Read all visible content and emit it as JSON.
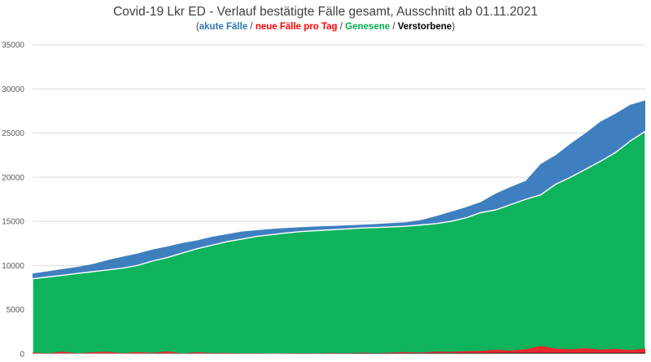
{
  "chart_data": {
    "type": "area",
    "title": "Covid-19 Lkr ED - Verlauf bestätigte Fälle gesamt, Ausschnitt ab 01.11.2021",
    "legend": {
      "open": "(",
      "close": ")",
      "separator": " / ",
      "items": [
        {
          "label": "akute Fälle",
          "color": "#2e75b6"
        },
        {
          "label": "neue Fälle pro Tag",
          "color": "#ff0000"
        },
        {
          "label": "Genesene",
          "color": "#00b050"
        },
        {
          "label": "Verstorbene",
          "color": "#000000"
        }
      ]
    },
    "ylim": [
      0,
      35000
    ],
    "yticks": [
      0,
      5000,
      10000,
      15000,
      20000,
      25000,
      30000,
      35000
    ],
    "ytick_labels": [
      "0",
      "5000",
      "10000",
      "15000",
      "20000",
      "25000",
      "30000",
      "35000"
    ],
    "grid": true,
    "xlabel": "",
    "ylabel": "",
    "x_start": "01.11.2021",
    "series": [
      {
        "name": "Gesamt (akute Fälle)",
        "color": "#3f7fbf",
        "values": [
          9100,
          9350,
          9600,
          9850,
          10150,
          10600,
          11000,
          11350,
          11800,
          12150,
          12550,
          12850,
          13250,
          13550,
          13850,
          14000,
          14150,
          14250,
          14350,
          14420,
          14480,
          14550,
          14620,
          14700,
          14800,
          14900,
          15150,
          15600,
          16100,
          16600,
          17200,
          18150,
          18900,
          19600,
          21500,
          22500,
          23800,
          25000,
          26300,
          27200,
          28200,
          28700
        ]
      },
      {
        "name": "Genesene",
        "color": "#0fb35c",
        "values": [
          8500,
          8700,
          8900,
          9100,
          9300,
          9500,
          9700,
          10000,
          10500,
          10900,
          11400,
          11900,
          12300,
          12700,
          13000,
          13300,
          13500,
          13700,
          13850,
          13950,
          14050,
          14150,
          14250,
          14300,
          14380,
          14450,
          14600,
          14750,
          15000,
          15400,
          16000,
          16300,
          16900,
          17500,
          18000,
          19200,
          20000,
          20900,
          21800,
          22800,
          24100,
          25200
        ]
      },
      {
        "name": "neue Fälle pro Tag",
        "color": "#e8282b",
        "values": [
          150,
          80,
          250,
          60,
          180,
          240,
          90,
          200,
          130,
          280,
          70,
          190,
          100,
          120,
          60,
          80,
          50,
          70,
          90,
          60,
          110,
          80,
          140,
          90,
          170,
          200,
          150,
          260,
          220,
          300,
          350,
          450,
          380,
          520,
          900,
          600,
          520,
          640,
          480,
          560,
          420,
          600
        ]
      },
      {
        "name": "Verstorbene",
        "color": "#000000",
        "values": [
          50,
          51,
          52,
          53,
          54,
          55,
          57,
          58,
          60,
          62,
          64,
          66,
          68,
          70,
          72,
          74,
          76,
          78,
          80,
          82,
          84,
          86,
          88,
          90,
          92,
          94,
          96,
          98,
          100,
          102,
          104,
          106,
          108,
          110,
          112,
          114,
          116,
          118,
          120,
          122,
          124,
          126
        ]
      }
    ]
  }
}
